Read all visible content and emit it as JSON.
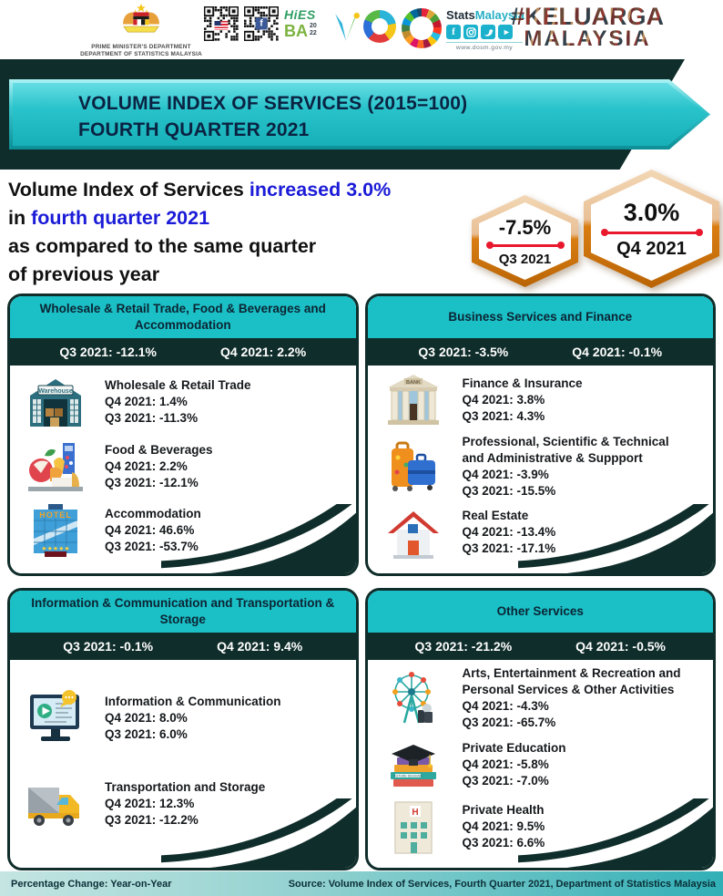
{
  "header": {
    "dept_line1": "PRIME MINISTER'S DEPARTMENT",
    "dept_line2": "DEPARTMENT OF STATISTICS MALAYSIA",
    "hies_top": "HiES",
    "hies_ba": "BA",
    "hies_year_top": "20",
    "hies_year_bottom": "22",
    "stats_bold": "Stats",
    "stats_rest": "Malaysia",
    "website": "www.dosm.gov.my",
    "hashtag_line1": "#KELUARGA",
    "hashtag_line2": "MALAYSIA",
    "social_icons": [
      "facebook",
      "instagram",
      "twitter",
      "youtube"
    ]
  },
  "title_banner": {
    "line1": "VOLUME INDEX OF SERVICES (2015=100)",
    "line2": "FOURTH QUARTER 2021"
  },
  "intro": {
    "seg1": "Volume Index of Services ",
    "seg2": "increased 3.0%",
    "seg3": "in ",
    "seg4": "fourth quarter 2021",
    "line3": "as compared to the same quarter",
    "line4": "of previous year"
  },
  "badges": [
    {
      "value": "-7.5%",
      "label": "Q3 2021"
    },
    {
      "value": "3.0%",
      "label": "Q4 2021"
    }
  ],
  "panels": [
    {
      "id": "wholesale-retail-food-accommodation",
      "title": "Wholesale & Retail Trade, Food & Beverages and Accommodation",
      "q3": "Q3 2021: -12.1%",
      "q4": "Q4 2021: 2.2%",
      "items": [
        {
          "icon": "warehouse-icon",
          "name": "Wholesale & Retail Trade",
          "q4": "Q4 2021:  1.4%",
          "q3": "Q3 2021:  -11.3%"
        },
        {
          "icon": "food-beverages-icon",
          "name": "Food & Beverages",
          "q4": "Q4 2021:  2.2%",
          "q3": "Q3 2021:  -12.1%"
        },
        {
          "icon": "hotel-icon",
          "name": "Accommodation",
          "q4": "Q4 2021:  46.6%",
          "q3": "Q3 2021:  -53.7%"
        }
      ]
    },
    {
      "id": "business-services-finance",
      "title": "Business Services and Finance",
      "q3": "Q3 2021: -3.5%",
      "q4": "Q4 2021: -0.1%",
      "items": [
        {
          "icon": "bank-icon",
          "name": "Finance & Insurance",
          "q4": "Q4 2021:  3.8%",
          "q3": "Q3 2021:  4.3%"
        },
        {
          "icon": "briefcase-icon",
          "name": "Professional, Scientific & Technical and Administrative & Suppport",
          "q4": "Q4 2021:  -3.9%",
          "q3": "Q3 2021:  -15.5%"
        },
        {
          "icon": "house-icon",
          "name": "Real Estate",
          "q4": "Q4 2021:  -13.4%",
          "q3": "Q3 2021:  -17.1%"
        }
      ]
    },
    {
      "id": "information-communication-transportation-storage",
      "title": "Information & Communication and Transportation & Storage",
      "q3": "Q3 2021: -0.1%",
      "q4": "Q4 2021: 9.4%",
      "items": [
        {
          "icon": "monitor-icon",
          "name": "Information & Communication",
          "q4": "Q4 2021:  8.0%",
          "q3": "Q3 2021:  6.0%"
        },
        {
          "icon": "truck-icon",
          "name": "Transportation and Storage",
          "q4": "Q4 2021:  12.3%",
          "q3": "Q3 2021:  -12.2%"
        }
      ]
    },
    {
      "id": "other-services",
      "title": "Other Services",
      "q3": "Q3 2021: -21.2%",
      "q4": "Q4 2021: -0.5%",
      "items": [
        {
          "icon": "ferris-wheel-icon",
          "name": "Arts, Entertainment & Recreation and Personal Services & Other Activities",
          "q4": "Q4 2021:  -4.3%",
          "q3": "Q3 2021:  -65.7%"
        },
        {
          "icon": "graduation-icon",
          "name": "Private Education",
          "q4": "Q4 2021:  -5.8%",
          "q3": "Q3 2021:  -7.0%"
        },
        {
          "icon": "hospital-icon",
          "name": "Private Health",
          "q4": "Q4 2021:  9.5%",
          "q3": "Q3 2021:  6.6%"
        }
      ]
    }
  ],
  "footer": {
    "left": "Percentage Change: Year-on-Year",
    "right": "Source: Volume Index of Services, Fourth Quarter 2021, Department of Statistics Malaysia"
  },
  "colors": {
    "teal": "#1ac0c6",
    "dark": "#0f2d2a",
    "blue_text": "#1b1bd8",
    "red_line": "#e8192c",
    "hex_orange": "#d97d12",
    "hex_tan": "#eccaa4"
  }
}
